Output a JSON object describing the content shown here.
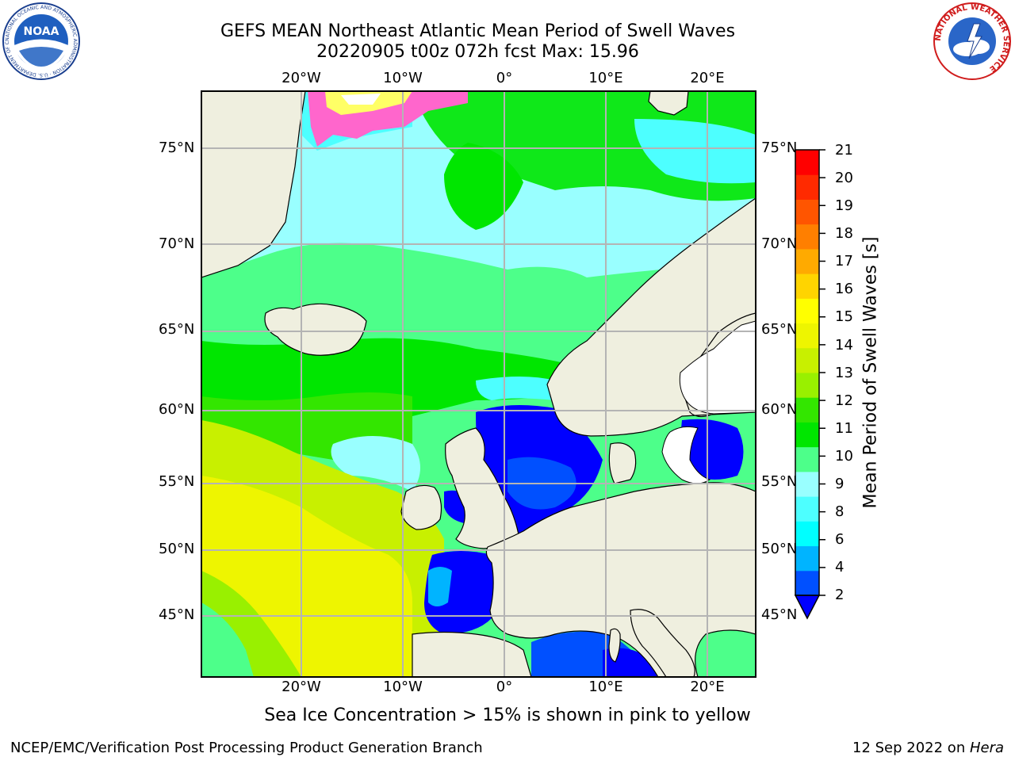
{
  "title_line1": "GEFS MEAN Northeast Atlantic Mean Period of Swell Waves",
  "title_line2": "20220905 t00z 072h fcst   Max: 15.96",
  "lon_labels": [
    "20°W",
    "10°W",
    "0°",
    "10°E",
    "20°E"
  ],
  "lat_labels": [
    "75°N",
    "70°N",
    "65°N",
    "60°N",
    "55°N",
    "50°N",
    "45°N"
  ],
  "colorbar": {
    "label": "Mean Period of Swell Waves [s]",
    "ticks": [
      "21",
      "20",
      "19",
      "18",
      "17",
      "16",
      "15",
      "14",
      "13",
      "12",
      "11",
      "10",
      "9",
      "8",
      "6",
      "4",
      "2"
    ],
    "colors": [
      "#0050ff",
      "#00b4ff",
      "#00ffff",
      "#4dffff",
      "#99ffff",
      "#4dff8a",
      "#00e600",
      "#33e600",
      "#99f000",
      "#c8f000",
      "#eef500",
      "#ffff00",
      "#ffd400",
      "#ffaa00",
      "#ff7f00",
      "#ff5500",
      "#ff2a00",
      "#ff0000"
    ],
    "under_color": "#0000ff"
  },
  "caption": "Sea Ice Concentration > 15% is shown in pink to yellow",
  "footer": {
    "left": "NCEP/EMC/Verification Post Processing Product Generation Branch",
    "date": "12 Sep 2022 on ",
    "machine": "Hera"
  },
  "logos": {
    "noaa_text": "NOAA",
    "noaa_ring": "NATIONAL OCEANIC AND ATMOSPHERIC ADMINISTRATION · U.S. DEPARTMENT OF COMMERCE",
    "nws_ring": "NATIONAL WEATHER SERVICE"
  },
  "colors": {
    "land": "#efefdf",
    "coast": "#000000",
    "grid": "#b4b4b4"
  }
}
